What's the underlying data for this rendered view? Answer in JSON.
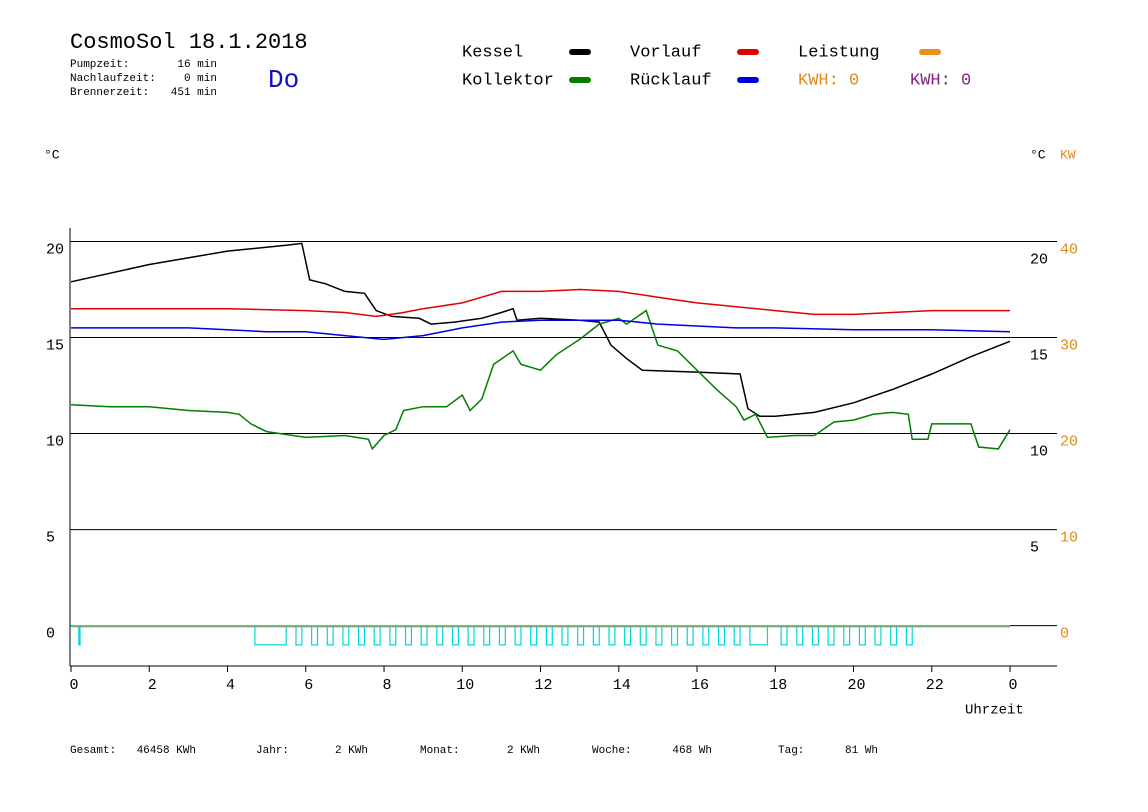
{
  "chart_data": {
    "type": "line",
    "title": "CosmoSol 18.1.2018",
    "info": [
      {
        "label": "Pumpzeit:",
        "value": "16 min"
      },
      {
        "label": "Nachlaufzeit:",
        "value": "0 min"
      },
      {
        "label": "Brennerzeit:",
        "value": "451 min"
      }
    ],
    "weekday": "Do",
    "y_unit": "°C",
    "y2_units": [
      "°C",
      "KW"
    ],
    "x_label": "Uhrzeit",
    "xlim": [
      0,
      25.2
    ],
    "xticks": [
      0,
      2,
      4,
      6,
      8,
      10,
      12,
      14,
      16,
      18,
      20,
      22,
      {
        "value": 24,
        "label": "0"
      }
    ],
    "ylim": [
      -2.1,
      20.7
    ],
    "yticks": [
      0,
      5,
      10,
      15,
      20
    ],
    "right_yticks": [
      5,
      10,
      15,
      20
    ],
    "y2lim": [
      -4.2,
      41.4
    ],
    "y2ticks": [
      0,
      10,
      20,
      30,
      40
    ],
    "y2_color": "#e08a1e",
    "grid": true,
    "series": [
      {
        "name": "Kessel",
        "color": "#000000",
        "x": [
          0,
          2,
          4,
          5.5,
          5.9,
          6.1,
          6.5,
          7,
          7.5,
          7.8,
          8.2,
          8.9,
          9.2,
          9.8,
          10.5,
          11,
          11.3,
          11.4,
          12,
          13,
          13.5,
          13.8,
          14.2,
          14.6,
          16,
          17.1,
          17.3,
          17.6,
          18,
          19,
          20,
          21,
          22,
          23,
          24
        ],
        "values": [
          17.9,
          18.8,
          19.5,
          19.8,
          19.9,
          18.0,
          17.8,
          17.4,
          17.3,
          16.4,
          16.1,
          16.0,
          15.7,
          15.8,
          16.0,
          16.3,
          16.5,
          15.9,
          16.0,
          15.9,
          15.8,
          14.6,
          13.9,
          13.3,
          13.2,
          13.1,
          11.3,
          10.9,
          10.9,
          11.1,
          11.6,
          12.3,
          13.1,
          14.0,
          14.8
        ]
      },
      {
        "name": "Kollektor",
        "color": "#007f00",
        "x": [
          0,
          1,
          2,
          3,
          4,
          4.3,
          4.6,
          5,
          6,
          7,
          7.6,
          7.7,
          8,
          8.3,
          8.5,
          9,
          9.6,
          10,
          10.2,
          10.5,
          10.8,
          11.3,
          11.5,
          12,
          12.4,
          13,
          13.5,
          14,
          14.2,
          14.7,
          15,
          15.5,
          16,
          16.5,
          17,
          17.2,
          17.5,
          17.8,
          18.5,
          19,
          19.5,
          20,
          20.5,
          21,
          21.4,
          21.5,
          21.9,
          22,
          23,
          23.2,
          23.7,
          24
        ],
        "values": [
          11.5,
          11.4,
          11.4,
          11.2,
          11.1,
          11.0,
          10.5,
          10.1,
          9.8,
          9.9,
          9.7,
          9.2,
          9.9,
          10.2,
          11.2,
          11.4,
          11.4,
          12.0,
          11.2,
          11.8,
          13.6,
          14.3,
          13.6,
          13.3,
          14.1,
          14.9,
          15.7,
          16.0,
          15.7,
          16.4,
          14.6,
          14.3,
          13.3,
          12.3,
          11.4,
          10.7,
          11.0,
          9.8,
          9.9,
          9.9,
          10.6,
          10.7,
          11.0,
          11.1,
          11.0,
          9.7,
          9.7,
          10.5,
          10.5,
          9.3,
          9.2,
          10.2
        ]
      },
      {
        "name": "Vorlauf",
        "color": "#e00000",
        "x": [
          0,
          2,
          4,
          6,
          7,
          7.8,
          8.5,
          9,
          10,
          10.5,
          11,
          12,
          13,
          14,
          15,
          16,
          17,
          18,
          19,
          20,
          22,
          24
        ],
        "values": [
          16.5,
          16.5,
          16.5,
          16.4,
          16.3,
          16.1,
          16.3,
          16.5,
          16.8,
          17.1,
          17.4,
          17.4,
          17.5,
          17.4,
          17.1,
          16.8,
          16.6,
          16.4,
          16.2,
          16.2,
          16.4,
          16.4
        ]
      },
      {
        "name": "Rücklauf",
        "color": "#0000e0",
        "x": [
          0,
          3,
          4,
          5,
          6,
          7,
          8,
          9,
          10,
          11,
          12,
          13,
          14,
          15,
          16,
          17,
          18,
          20,
          22,
          24
        ],
        "values": [
          15.5,
          15.5,
          15.4,
          15.3,
          15.3,
          15.1,
          14.9,
          15.1,
          15.5,
          15.8,
          15.9,
          15.9,
          15.9,
          15.7,
          15.6,
          15.5,
          15.5,
          15.4,
          15.4,
          15.3
        ]
      },
      {
        "name": "Leistung",
        "color": "#f08c1e",
        "axis": "y2",
        "x": [
          0,
          24
        ],
        "values": [
          0,
          0
        ]
      }
    ],
    "kwh": [
      {
        "label": "KWH: 0",
        "color": "#e08a1e"
      },
      {
        "label": "KWH: 0",
        "color": "#7f1f7f"
      }
    ],
    "pump": {
      "color": "#00d8d8",
      "level": -1,
      "intervals": [
        [
          0.2,
          0.23
        ],
        [
          4.7,
          5.5
        ],
        [
          5.75,
          5.9
        ],
        [
          6.15,
          6.3
        ],
        [
          6.55,
          6.7
        ],
        [
          6.95,
          7.1
        ],
        [
          7.35,
          7.5
        ],
        [
          7.75,
          7.9
        ],
        [
          8.15,
          8.3
        ],
        [
          8.55,
          8.7
        ],
        [
          8.95,
          9.1
        ],
        [
          9.35,
          9.5
        ],
        [
          9.75,
          9.9
        ],
        [
          10.15,
          10.3
        ],
        [
          10.55,
          10.7
        ],
        [
          10.95,
          11.1
        ],
        [
          11.35,
          11.5
        ],
        [
          11.75,
          11.9
        ],
        [
          12.15,
          12.3
        ],
        [
          12.55,
          12.7
        ],
        [
          12.95,
          13.1
        ],
        [
          13.35,
          13.5
        ],
        [
          13.75,
          13.9
        ],
        [
          14.15,
          14.3
        ],
        [
          14.55,
          14.7
        ],
        [
          14.95,
          15.1
        ],
        [
          15.35,
          15.5
        ],
        [
          15.75,
          15.9
        ],
        [
          16.15,
          16.3
        ],
        [
          16.55,
          16.7
        ],
        [
          16.95,
          17.1
        ],
        [
          17.35,
          17.8
        ],
        [
          18.15,
          18.3
        ],
        [
          18.55,
          18.7
        ],
        [
          18.95,
          19.1
        ],
        [
          19.35,
          19.5
        ],
        [
          19.75,
          19.9
        ],
        [
          20.15,
          20.3
        ],
        [
          20.55,
          20.7
        ],
        [
          20.95,
          21.1
        ],
        [
          21.35,
          21.5
        ]
      ]
    },
    "totals": [
      {
        "label": "Gesamt:",
        "value": "46458 KWh"
      },
      {
        "label": "Jahr:",
        "value": "2 KWh"
      },
      {
        "label": "Monat:",
        "value": "2 KWh"
      },
      {
        "label": "Woche:",
        "value": "468 Wh"
      },
      {
        "label": "Tag:",
        "value": "81 Wh"
      }
    ]
  }
}
